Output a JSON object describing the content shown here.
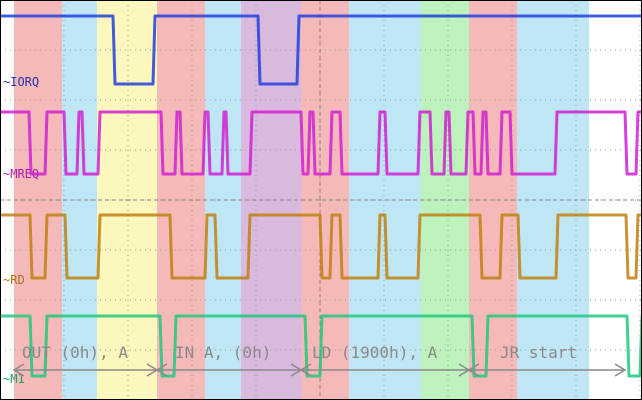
{
  "signals": [
    "~IORQ",
    "~MREQ",
    "~RD",
    "~M1"
  ],
  "annotations": [
    "OUT (0h), A",
    "IN A, (0h)",
    "LD (1900h), A",
    "JR start"
  ]
}
